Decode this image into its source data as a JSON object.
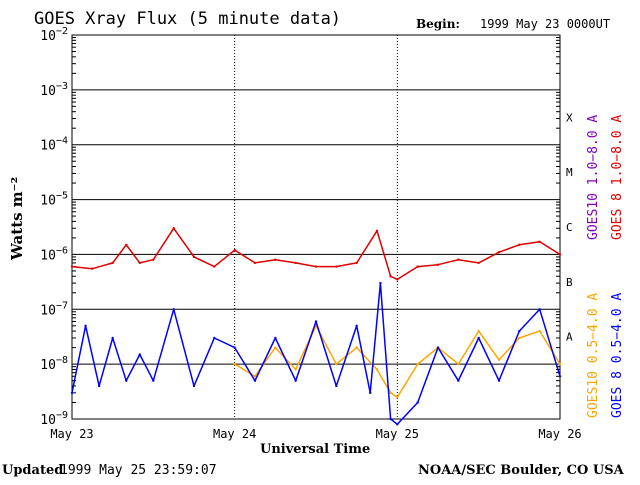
{
  "page": {
    "title": "GOES Xray Flux (5 minute data)",
    "begin_label": "Begin:",
    "begin_value": "1999 May 23 0000UT",
    "updated_label": "Updated",
    "updated_value": "1999 May 25 23:59:07",
    "credit": "NOAA/SEC Boulder, CO USA"
  },
  "colors": {
    "goes8_long": "#e00000",
    "goes10_long": "#8000c0",
    "goes8_short": "#0000ff",
    "goes10_short": "#ffa500",
    "axis": "#000000"
  },
  "chart_data": {
    "type": "line",
    "title": "GOES Xray Flux (5 minute data)",
    "xlabel": "Universal Time",
    "ylabel": "Watts m⁻²",
    "y_scale": "log",
    "ylim": [
      1e-09,
      0.01
    ],
    "xlim": [
      "1999-05-23",
      "1999-05-26"
    ],
    "x_ticks": [
      "May 23",
      "May 24",
      "May 25",
      "May 26"
    ],
    "y_ticks": [
      {
        "base": "10",
        "exp": "−2"
      },
      {
        "base": "10",
        "exp": "−3"
      },
      {
        "base": "10",
        "exp": "−4"
      },
      {
        "base": "10",
        "exp": "−5"
      },
      {
        "base": "10",
        "exp": "−6"
      },
      {
        "base": "10",
        "exp": "−7"
      },
      {
        "base": "10",
        "exp": "−8"
      },
      {
        "base": "10",
        "exp": "−9"
      }
    ],
    "grid": true,
    "flare_classes": [
      "X",
      "M",
      "C",
      "B",
      "A"
    ],
    "series": [
      {
        "name": "GOES 8 1.0−8.0 A",
        "color": "#e00000",
        "x": [
          "1999-05-23 00:00",
          "1999-05-23 03:00",
          "1999-05-23 06:00",
          "1999-05-23 08:00",
          "1999-05-23 10:00",
          "1999-05-23 12:00",
          "1999-05-23 15:00",
          "1999-05-23 18:00",
          "1999-05-23 21:00",
          "1999-05-24 00:00",
          "1999-05-24 03:00",
          "1999-05-24 06:00",
          "1999-05-24 09:00",
          "1999-05-24 12:00",
          "1999-05-24 15:00",
          "1999-05-24 18:00",
          "1999-05-24 21:00",
          "1999-05-24 23:00",
          "1999-05-25 00:00",
          "1999-05-25 03:00",
          "1999-05-25 06:00",
          "1999-05-25 09:00",
          "1999-05-25 12:00",
          "1999-05-25 15:00",
          "1999-05-25 18:00",
          "1999-05-25 21:00",
          "1999-05-26 00:00"
        ],
        "values": [
          6e-07,
          5.5e-07,
          7e-07,
          1.5e-06,
          7e-07,
          8e-07,
          3e-06,
          9e-07,
          6e-07,
          1.2e-06,
          7e-07,
          8e-07,
          7e-07,
          6e-07,
          6e-07,
          7e-07,
          2.7e-06,
          4e-07,
          3.5e-07,
          6e-07,
          6.5e-07,
          8e-07,
          7e-07,
          1.1e-06,
          1.5e-06,
          1.7e-06,
          1e-06
        ]
      },
      {
        "name": "GOES10 1.0−8.0 A",
        "color": "#8000c0",
        "x": [],
        "values": []
      },
      {
        "name": "GOES 8 0.5−4.0 A",
        "color": "#0000ff",
        "x": [
          "1999-05-23 00:00",
          "1999-05-23 02:00",
          "1999-05-23 04:00",
          "1999-05-23 06:00",
          "1999-05-23 08:00",
          "1999-05-23 10:00",
          "1999-05-23 12:00",
          "1999-05-23 15:00",
          "1999-05-23 18:00",
          "1999-05-23 21:00",
          "1999-05-24 00:00",
          "1999-05-24 03:00",
          "1999-05-24 06:00",
          "1999-05-24 09:00",
          "1999-05-24 12:00",
          "1999-05-24 15:00",
          "1999-05-24 18:00",
          "1999-05-24 20:00",
          "1999-05-24 21:30",
          "1999-05-24 23:00",
          "1999-05-25 00:00",
          "1999-05-25 03:00",
          "1999-05-25 06:00",
          "1999-05-25 09:00",
          "1999-05-25 12:00",
          "1999-05-25 15:00",
          "1999-05-25 18:00",
          "1999-05-25 21:00",
          "1999-05-26 00:00"
        ],
        "values": [
          3e-09,
          5e-08,
          4e-09,
          3e-08,
          5e-09,
          1.5e-08,
          5e-09,
          1e-07,
          4e-09,
          3e-08,
          2e-08,
          5e-09,
          3e-08,
          5e-09,
          6e-08,
          4e-09,
          5e-08,
          3e-09,
          3e-07,
          1e-09,
          8e-10,
          2e-09,
          2e-08,
          5e-09,
          3e-08,
          5e-09,
          4e-08,
          1e-07,
          6e-09
        ]
      },
      {
        "name": "GOES10 0.5−4.0 A",
        "color": "#ffa500",
        "x": [
          "1999-05-24 00:00",
          "1999-05-24 03:00",
          "1999-05-24 06:00",
          "1999-05-24 09:00",
          "1999-05-24 12:00",
          "1999-05-24 15:00",
          "1999-05-24 18:00",
          "1999-05-24 21:00",
          "1999-05-24 23:00",
          "1999-05-25 00:00",
          "1999-05-25 03:00",
          "1999-05-25 06:00",
          "1999-05-25 09:00",
          "1999-05-25 12:00",
          "1999-05-25 15:00",
          "1999-05-25 18:00",
          "1999-05-25 21:00",
          "1999-05-26 00:00"
        ],
        "values": [
          1e-08,
          6e-09,
          2e-08,
          8e-09,
          5e-08,
          1e-08,
          2e-08,
          8e-09,
          3e-09,
          2.5e-09,
          1e-08,
          2e-08,
          1e-08,
          4e-08,
          1.2e-08,
          3e-08,
          4e-08,
          1e-08
        ]
      }
    ]
  }
}
